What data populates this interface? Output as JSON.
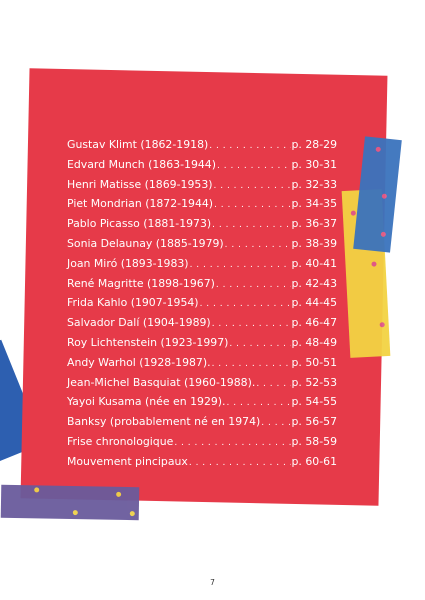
{
  "contents": {
    "entries": [
      {
        "title": "Gustav Klimt (1862-1918)",
        "page": "p. 28-29"
      },
      {
        "title": "Edvard Munch (1863-1944)",
        "page": "p. 30-31"
      },
      {
        "title": "Henri Matisse (1869-1953)",
        "page": "p. 32-33"
      },
      {
        "title": "Piet Mondrian (1872-1944)",
        "page": "p. 34-35"
      },
      {
        "title": "Pablo Picasso (1881-1973)",
        "page": "p. 36-37"
      },
      {
        "title": "Sonia Delaunay (1885-1979)",
        "page": "p. 38-39"
      },
      {
        "title": "Joan Miró (1893-1983)",
        "page": "p. 40-41"
      },
      {
        "title": "René Magritte (1898-1967)",
        "page": "p. 42-43"
      },
      {
        "title": "Frida Kahlo (1907-1954)",
        "page": "p. 44-45"
      },
      {
        "title": "Salvador Dalí (1904-1989)",
        "page": "p. 46-47"
      },
      {
        "title": "Roy Lichtenstein (1923-1997)",
        "page": "p. 48-49"
      },
      {
        "title": "Andy Warhol (1928-1987).",
        "page": "p. 50-51"
      },
      {
        "title": "Jean-Michel Basquiat (1960-1988).",
        "page": "p. 52-53"
      },
      {
        "title": "Yayoi Kusama (née en 1929).",
        "page": "p. 54-55"
      },
      {
        "title": "Banksy (probablement né en 1974)",
        "page": "p. 56-57"
      },
      {
        "title": "Frise chronologique",
        "page": "p. 58-59"
      },
      {
        "title": "Mouvement pincipaux",
        "page": "p. 60-61"
      }
    ]
  },
  "footer": {
    "page_number": "7"
  },
  "colors": {
    "panel": "#e63a49",
    "tape_yellow": "#f3d343",
    "tape_blue": "#3b73bd",
    "tape_purple": "#6a5b9c",
    "corner_blue": "#2d5fb0",
    "text": "#ffffff"
  }
}
